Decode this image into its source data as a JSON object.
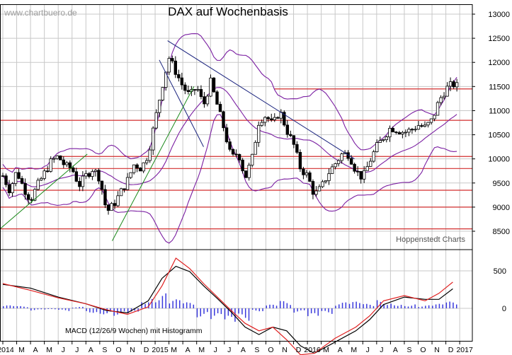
{
  "watermark": "www.chartbuero.de",
  "title": "DAX auf Wochenbasis",
  "source_label": "Hoppenstedt Charts",
  "macd_label": "MACD (12/26/9 Wochen) mit Histogramm",
  "colors": {
    "grid": "#c8c8c8",
    "candle": "#000000",
    "bollinger": "#7b1fa2",
    "horizontal_lines": "#d32f2f",
    "trendline_blue": "#1a237e",
    "trendline_green": "#1b8a1b",
    "macd_line": "#000000",
    "signal_line": "#e02020",
    "histogram": "#3a3adc"
  },
  "chart_data": [
    {
      "type": "candlestick",
      "title": "DAX auf Wochenbasis",
      "x_ticks": [
        "2014",
        "M",
        "A",
        "M",
        "J",
        "J",
        "A",
        "S",
        "O",
        "N",
        "D",
        "2015",
        "M",
        "A",
        "M",
        "J",
        "J",
        "A",
        "S",
        "O",
        "N",
        "D",
        "2016",
        "M",
        "A",
        "M",
        "J",
        "J",
        "A",
        "S",
        "O",
        "N",
        "D",
        "2017"
      ],
      "y_ticks": [
        8500,
        9000,
        9500,
        10000,
        10500,
        11000,
        11500,
        12000,
        12500,
        13000
      ],
      "ylim": [
        8200,
        13200
      ],
      "grid": true,
      "horizontal_levels": [
        8550,
        9000,
        9350,
        9800,
        10050,
        10800,
        11450
      ],
      "trendlines": [
        {
          "name": "blue-downtrend",
          "color": "trendline_blue",
          "points": [
            [
              11.9,
              12450
            ],
            [
              25.4,
              10000
            ]
          ]
        },
        {
          "name": "blue-channel-lower",
          "color": "trendline_blue",
          "points": [
            [
              11.3,
              12050
            ],
            [
              14.5,
              10250
            ]
          ]
        },
        {
          "name": "green-uptrend-1",
          "color": "trendline_green",
          "points": [
            [
              -0.2,
              8550
            ],
            [
              6.1,
              10100
            ]
          ]
        },
        {
          "name": "green-uptrend-2",
          "color": "trendline_green",
          "points": [
            [
              7.9,
              8300
            ],
            [
              13.8,
              11500
            ]
          ]
        }
      ],
      "close_path": [
        [
          0,
          9650
        ],
        [
          0.5,
          9350
        ],
        [
          1,
          9750
        ],
        [
          1.5,
          9400
        ],
        [
          2,
          9150
        ],
        [
          2.5,
          9450
        ],
        [
          3,
          9700
        ],
        [
          3.5,
          9950
        ],
        [
          4,
          10050
        ],
        [
          4.5,
          9850
        ],
        [
          5,
          9800
        ],
        [
          5.5,
          9450
        ],
        [
          6,
          9650
        ],
        [
          6.5,
          9800
        ],
        [
          7,
          9600
        ],
        [
          7.5,
          8900
        ],
        [
          8,
          9050
        ],
        [
          8.5,
          9300
        ],
        [
          9,
          9550
        ],
        [
          9.5,
          9900
        ],
        [
          10,
          9800
        ],
        [
          10.5,
          10100
        ],
        [
          11,
          10800
        ],
        [
          11.5,
          11500
        ],
        [
          12,
          12100
        ],
        [
          12.5,
          11800
        ],
        [
          13,
          11500
        ],
        [
          13.5,
          11300
        ],
        [
          14,
          11500
        ],
        [
          14.5,
          11100
        ],
        [
          15,
          11600
        ],
        [
          15.5,
          11100
        ],
        [
          16,
          10600
        ],
        [
          16.5,
          10000
        ],
        [
          17,
          10150
        ],
        [
          17.5,
          9600
        ],
        [
          18,
          10000
        ],
        [
          18.5,
          10800
        ],
        [
          19,
          10900
        ],
        [
          19.5,
          10700
        ],
        [
          20,
          11000
        ],
        [
          20.5,
          10600
        ],
        [
          21,
          10300
        ],
        [
          21.5,
          9800
        ],
        [
          22,
          9650
        ],
        [
          22.5,
          9250
        ],
        [
          23,
          9400
        ],
        [
          23.5,
          9700
        ],
        [
          24,
          9900
        ],
        [
          24.5,
          10100
        ],
        [
          25,
          10100
        ],
        [
          25.5,
          9750
        ],
        [
          26,
          9600
        ],
        [
          26.5,
          9950
        ],
        [
          27,
          10250
        ],
        [
          27.5,
          10450
        ],
        [
          28,
          10650
        ],
        [
          28.5,
          10600
        ],
        [
          29,
          10550
        ],
        [
          29.5,
          10600
        ],
        [
          30,
          10700
        ],
        [
          30.5,
          10650
        ],
        [
          31,
          10800
        ],
        [
          31.5,
          11200
        ],
        [
          32,
          11450
        ],
        [
          32.5,
          11550
        ],
        [
          33,
          11480
        ]
      ]
    },
    {
      "type": "line",
      "title": "MACD (12/26/9 Wochen) mit Histogramm",
      "y_ticks": [
        0,
        500
      ],
      "ylim": [
        -750,
        800
      ],
      "series": [
        {
          "name": "MACD",
          "points": [
            [
              0,
              320
            ],
            [
              2,
              270
            ],
            [
              4,
              150
            ],
            [
              6,
              60
            ],
            [
              7.5,
              -30
            ],
            [
              9,
              -60
            ],
            [
              10.5,
              100
            ],
            [
              11.5,
              400
            ],
            [
              12.5,
              560
            ],
            [
              13.5,
              490
            ],
            [
              14.5,
              300
            ],
            [
              15.5,
              130
            ],
            [
              16.5,
              -50
            ],
            [
              17.5,
              -250
            ],
            [
              18.5,
              -350
            ],
            [
              19.5,
              -250
            ],
            [
              20.5,
              -300
            ],
            [
              21.5,
              -500
            ],
            [
              22.5,
              -600
            ],
            [
              24,
              -450
            ],
            [
              25.5,
              -300
            ],
            [
              26.5,
              -150
            ],
            [
              27.5,
              50
            ],
            [
              29,
              150
            ],
            [
              30.5,
              120
            ],
            [
              31.5,
              120
            ],
            [
              32.5,
              260
            ]
          ]
        },
        {
          "name": "Signal",
          "points": [
            [
              0,
              330
            ],
            [
              2,
              240
            ],
            [
              4,
              140
            ],
            [
              6,
              60
            ],
            [
              7.5,
              -20
            ],
            [
              9,
              -80
            ],
            [
              10.5,
              20
            ],
            [
              11.5,
              300
            ],
            [
              12.5,
              670
            ],
            [
              13.5,
              530
            ],
            [
              14.5,
              330
            ],
            [
              15.5,
              150
            ],
            [
              16.5,
              -30
            ],
            [
              17.5,
              -200
            ],
            [
              18.5,
              -300
            ],
            [
              19.5,
              -250
            ],
            [
              20.5,
              -420
            ],
            [
              21.5,
              -620
            ],
            [
              22.5,
              -600
            ],
            [
              24,
              -400
            ],
            [
              25.5,
              -250
            ],
            [
              26.5,
              -100
            ],
            [
              27.5,
              100
            ],
            [
              29,
              170
            ],
            [
              30.5,
              100
            ],
            [
              31.5,
              200
            ],
            [
              32.5,
              350
            ]
          ]
        }
      ],
      "histogram": [
        [
          0,
          40
        ],
        [
          1,
          30
        ],
        [
          2,
          -30
        ],
        [
          3,
          -20
        ],
        [
          4,
          -40
        ],
        [
          5,
          20
        ],
        [
          6,
          -60
        ],
        [
          7,
          -80
        ],
        [
          8,
          -100
        ],
        [
          9,
          -80
        ],
        [
          10,
          150
        ],
        [
          11,
          200
        ],
        [
          12,
          120
        ],
        [
          13,
          80
        ],
        [
          14,
          -120
        ],
        [
          15,
          -160
        ],
        [
          16,
          -240
        ],
        [
          17,
          -170
        ],
        [
          18,
          -40
        ],
        [
          19,
          50
        ],
        [
          20,
          100
        ],
        [
          21,
          -60
        ],
        [
          22,
          -150
        ],
        [
          23,
          -80
        ],
        [
          24,
          80
        ],
        [
          25,
          90
        ],
        [
          26,
          60
        ],
        [
          27,
          110
        ],
        [
          28,
          80
        ],
        [
          29,
          60
        ],
        [
          30,
          40
        ],
        [
          31,
          60
        ],
        [
          32,
          90
        ]
      ]
    }
  ]
}
